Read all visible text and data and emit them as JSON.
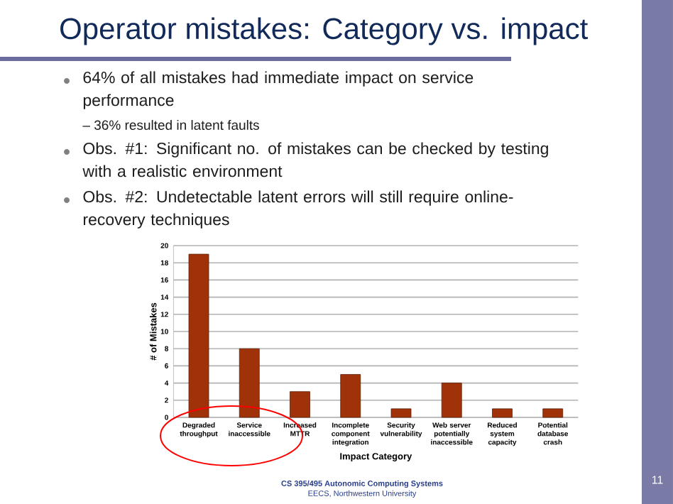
{
  "chart_data": {
    "type": "bar",
    "title": "Operator mistakes: Category vs. impact",
    "categories": [
      "Degraded throughput",
      "Service inaccessible",
      "Increased MTTR",
      "Incomplete component integration",
      "Security vulnerability",
      "Web server potentially inaccessible",
      "Reduced system capacity",
      "Potential database crash"
    ],
    "values": [
      19,
      8,
      3,
      5,
      1,
      4,
      1,
      1
    ],
    "color": "#a0320a",
    "xlabel": "Impact Category",
    "ylabel": "# of Mistakes",
    "ylim": [
      0,
      20
    ],
    "yticks": [
      0,
      2,
      4,
      6,
      8,
      10,
      12,
      14,
      16,
      18,
      20
    ],
    "grid": "y",
    "annotations": [
      "64% of all mistakes had immediate impact on service performance",
      "– 36% resulted in latent faults",
      "Obs. #1: Significant no. of mistakes can be checked by testing with a realistic environment",
      "Obs. #2: Undetectable latent errors will still require online-recovery techniques",
      "CS 395/495 Autonomic Computing Systems",
      "EECS,  Northwestern University",
      "11"
    ]
  }
}
